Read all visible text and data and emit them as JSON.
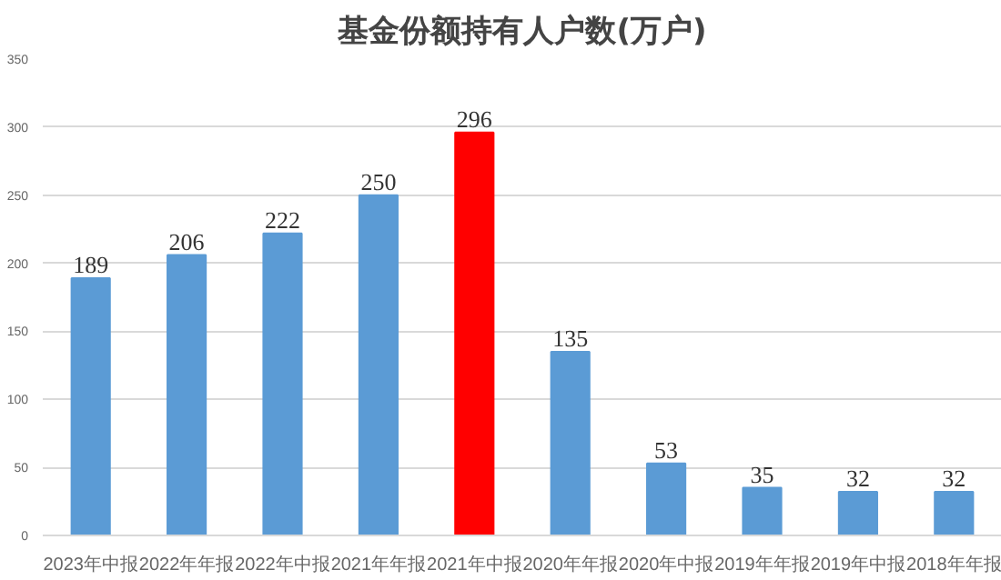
{
  "chart_data": {
    "type": "bar",
    "title": "基金份额持有人户数(万户)",
    "categories": [
      "2023年中报",
      "2022年年报",
      "2022年中报",
      "2021年年报",
      "2021年中报",
      "2020年年报",
      "2020年中报",
      "2019年年报",
      "2019年中报",
      "2018年年报"
    ],
    "values": [
      189,
      206,
      222,
      250,
      296,
      135,
      53,
      35,
      32,
      32
    ],
    "colors": [
      "#5b9bd5",
      "#5b9bd5",
      "#5b9bd5",
      "#5b9bd5",
      "#ff0000",
      "#5b9bd5",
      "#5b9bd5",
      "#5b9bd5",
      "#5b9bd5",
      "#5b9bd5"
    ],
    "ylim": [
      0,
      350
    ],
    "yticks": [
      0,
      50,
      100,
      150,
      200,
      250,
      300,
      350
    ],
    "grid": "y",
    "data_labels": true
  }
}
